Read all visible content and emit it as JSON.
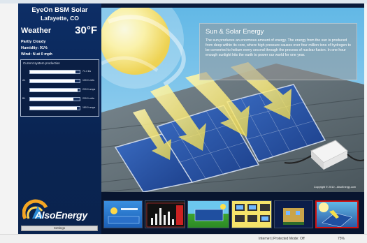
{
  "sidebar": {
    "site_name": "EyeOn BSM Solar",
    "location": "Lafayette, CO",
    "weather_label": "Weather",
    "temperature": "30°F",
    "condition": "Partly Cloudy",
    "humidity": "Humidity: 91%",
    "wind": "Wind: N at 0 mph",
    "production": {
      "title": "Current system production",
      "rows": [
        {
          "label": "",
          "value": "71.4 kw",
          "level": 0.92
        },
        {
          "label": "A1",
          "value": "100.0 volts",
          "level": 0.9
        },
        {
          "label": "",
          "value": "220.0 amps",
          "level": 0.96
        },
        {
          "label": "B1",
          "value": "220.0 volts",
          "level": 0.88
        },
        {
          "label": "",
          "value": "180.0 amps",
          "level": 0.95
        }
      ]
    },
    "logo_text": "AlsoEnergy",
    "settings_label": "Settings"
  },
  "slide": {
    "title": "Sun & Solar Energy",
    "body": "The sun produces an enormous amount of energy.  The energy from the sun is produced from deep within its core, where high pressure causes over four million tons of hydrogen to be converted to helium every second through the process of nuclear fusion. In one hour enough sunlight hits the earth to power our world for one year.",
    "copyright": "Copyright © 2010 - AlsoEnergy.com"
  },
  "statusbar": {
    "zone": "Internet | Protected Mode: Off",
    "zoom": "75%"
  },
  "colors": {
    "sidebar_bg": "#0d2e66",
    "thumb_selected_border": "#d01010"
  }
}
